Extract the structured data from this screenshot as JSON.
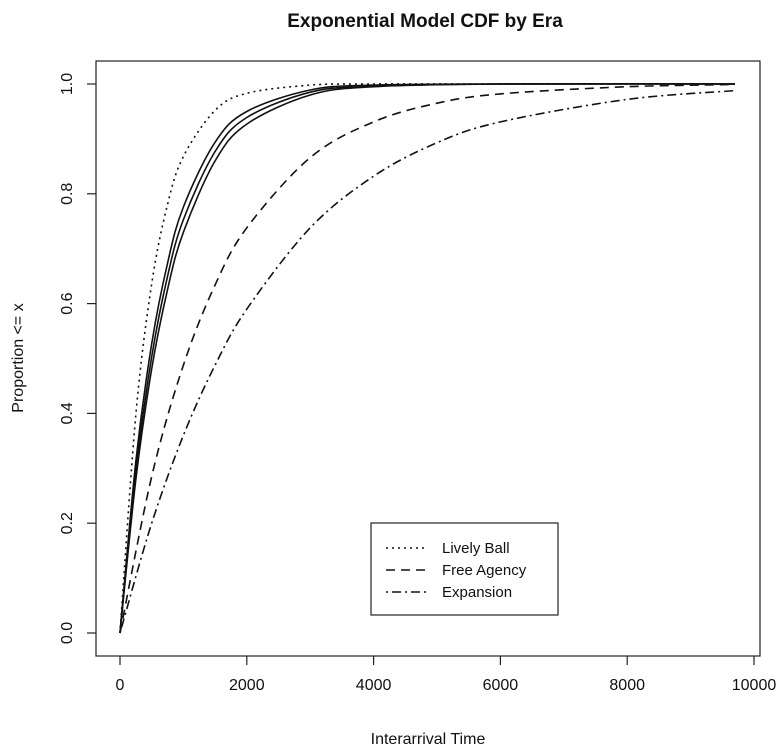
{
  "chart_data": {
    "type": "line",
    "title": "Exponential Model CDF by Era",
    "xlabel": "Interarrival Time",
    "ylabel": "Proportion <= x",
    "xlim": [
      0,
      10000
    ],
    "ylim": [
      0,
      1
    ],
    "xticks": [
      0,
      2000,
      4000,
      6000,
      8000,
      10000
    ],
    "yticks": [
      0.0,
      0.2,
      0.4,
      0.6,
      0.8,
      1.0
    ],
    "ytick_labels": [
      "0.0",
      "0.2",
      "0.4",
      "0.6",
      "0.8",
      "1.0"
    ],
    "grid": false,
    "legend": {
      "position": "bottom-center",
      "entries": [
        "Lively Ball",
        "Free Agency",
        "Expansion"
      ]
    },
    "series": [
      {
        "name": "Lively Ball",
        "style": "dotted",
        "x": [
          0,
          250,
          500,
          750,
          1000,
          1500,
          2000,
          3000,
          4000,
          6000,
          9700
        ],
        "y": [
          0,
          0.397,
          0.636,
          0.781,
          0.868,
          0.952,
          0.983,
          0.998,
          1.0,
          1.0,
          1.0
        ]
      },
      {
        "style": "solid",
        "x": [
          0,
          250,
          500,
          750,
          1000,
          1500,
          2000,
          3000,
          4000,
          6000,
          9700
        ],
        "y": [
          0,
          0.312,
          0.527,
          0.674,
          0.776,
          0.894,
          0.95,
          0.989,
          0.998,
          1.0,
          1.0
        ]
      },
      {
        "style": "solid",
        "x": [
          0,
          250,
          500,
          750,
          1000,
          1500,
          2000,
          3000,
          4000,
          6000,
          9700
        ],
        "y": [
          0,
          0.295,
          0.503,
          0.65,
          0.753,
          0.877,
          0.939,
          0.985,
          0.996,
          1.0,
          1.0
        ]
      },
      {
        "style": "solid",
        "x": [
          0,
          250,
          500,
          750,
          1000,
          1500,
          2000,
          3000,
          4000,
          6000,
          9700
        ],
        "y": [
          0,
          0.279,
          0.481,
          0.626,
          0.73,
          0.86,
          0.927,
          0.98,
          0.995,
          1.0,
          1.0
        ]
      },
      {
        "name": "Free Agency",
        "style": "dashed",
        "x": [
          0,
          500,
          1000,
          1500,
          2000,
          3000,
          4000,
          5000,
          6000,
          8000,
          9700
        ],
        "y": [
          0,
          0.285,
          0.488,
          0.634,
          0.738,
          0.866,
          0.931,
          0.965,
          0.982,
          0.995,
          0.999
        ]
      },
      {
        "name": "Expansion",
        "style": "dotdash",
        "x": [
          0,
          500,
          1000,
          1500,
          2000,
          3000,
          4000,
          5000,
          6000,
          8000,
          9700
        ],
        "y": [
          0,
          0.2,
          0.36,
          0.488,
          0.59,
          0.738,
          0.832,
          0.893,
          0.931,
          0.972,
          0.988
        ]
      }
    ]
  }
}
